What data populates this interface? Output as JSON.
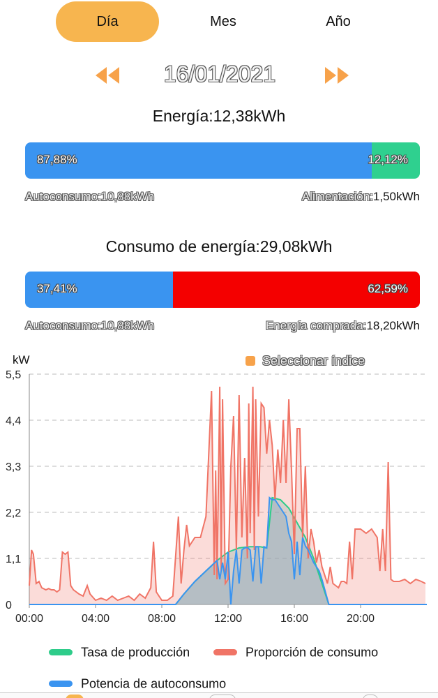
{
  "tabs": [
    {
      "label": "Día",
      "active": true
    },
    {
      "label": "Mes",
      "active": false
    },
    {
      "label": "Año",
      "active": false
    }
  ],
  "date": "16/01/2021",
  "energy": {
    "title": "Energía:12,38kWh",
    "left_pct": "87,88%",
    "right_pct": "12,12%",
    "left_fraction": 0.8788,
    "left_caption": "Autoconsumo:10,88kWh",
    "right_caption_label": "Alimentación:",
    "right_caption_value": "1,50kWh",
    "left_color": "#3a94f0",
    "right_color": "#2fd08f"
  },
  "consumption": {
    "title": "Consumo de energía:29,08kWh",
    "left_pct": "37,41%",
    "right_pct": "62,59%",
    "left_fraction": 0.3741,
    "left_caption": "Autoconsumo:10,88kWh",
    "right_caption_label": "Energía comprada:",
    "right_caption_value": "18,20kWh",
    "left_color": "#3a94f0",
    "right_color": "#f40000"
  },
  "chart": {
    "unit": "kW",
    "index_button": "Seleccionar índice",
    "index_color": "#f7a24a"
  },
  "chart_data": {
    "type": "area",
    "ylim": [
      0,
      5.5
    ],
    "yticks": [
      "0",
      "1,1",
      "2,2",
      "3,3",
      "4,4",
      "5,5"
    ],
    "ytick_values": [
      0,
      1.1,
      2.2,
      3.3,
      4.4,
      5.5
    ],
    "xlim": [
      "00:00",
      "24:00"
    ],
    "xticks": [
      "00:00",
      "04:00",
      "08:00",
      "12:00",
      "16:00",
      "20:00"
    ],
    "xtick_values": [
      "00:00",
      "04:00",
      "08:00",
      "12:00",
      "16:00",
      "20:00"
    ],
    "grid": true,
    "legend_position": "bottom",
    "series": [
      {
        "name": "Tasa de producción",
        "color": "#2ecc8a",
        "x": [
          "08:50",
          "09:20",
          "10:00",
          "10:40",
          "11:20",
          "12:00",
          "12:40",
          "13:20",
          "13:55",
          "14:20",
          "14:40",
          "15:10",
          "15:40",
          "16:10",
          "16:40",
          "17:10",
          "17:40",
          "18:05"
        ],
        "y": [
          0,
          0.25,
          0.55,
          0.8,
          1.05,
          1.25,
          1.35,
          1.38,
          1.38,
          1.35,
          2.55,
          2.5,
          2.3,
          1.95,
          1.6,
          1.1,
          0.5,
          0
        ]
      },
      {
        "name": "Proporción de consumo",
        "color": "#f07466",
        "x": [
          "00:00",
          "00:08",
          "00:15",
          "00:25",
          "00:35",
          "00:45",
          "01:00",
          "01:10",
          "01:20",
          "01:30",
          "01:40",
          "01:50",
          "02:00",
          "02:10",
          "02:20",
          "02:30",
          "02:40",
          "02:50",
          "03:00",
          "03:15",
          "03:30",
          "03:40",
          "04:00",
          "04:20",
          "04:40",
          "05:00",
          "05:20",
          "05:40",
          "06:00",
          "06:20",
          "06:40",
          "07:00",
          "07:20",
          "07:30",
          "07:40",
          "07:50",
          "08:00",
          "08:20",
          "08:40",
          "09:00",
          "09:10",
          "09:20",
          "09:30",
          "09:40",
          "10:00",
          "10:20",
          "10:40",
          "11:00",
          "11:10",
          "11:15",
          "11:20",
          "11:30",
          "11:35",
          "11:40",
          "11:50",
          "12:00",
          "12:10",
          "12:20",
          "12:30",
          "12:40",
          "12:50",
          "13:00",
          "13:10",
          "13:15",
          "13:20",
          "13:30",
          "13:35",
          "13:40",
          "13:50",
          "14:00",
          "14:10",
          "14:20",
          "14:30",
          "14:40",
          "14:50",
          "15:00",
          "15:10",
          "15:20",
          "15:30",
          "15:40",
          "15:50",
          "16:00",
          "16:10",
          "16:20",
          "16:30",
          "16:40",
          "16:50",
          "17:00",
          "17:10",
          "17:20",
          "17:30",
          "17:40",
          "18:00",
          "18:10",
          "18:20",
          "18:30",
          "18:40",
          "18:50",
          "19:00",
          "19:10",
          "19:20",
          "19:30",
          "19:40",
          "19:50",
          "20:00",
          "20:20",
          "20:40",
          "21:00",
          "21:10",
          "21:20",
          "21:30",
          "21:40",
          "21:50",
          "22:00",
          "22:20",
          "22:40",
          "23:00",
          "23:20",
          "23:40",
          "23:55"
        ],
        "y": [
          0.45,
          1.3,
          1.2,
          0.5,
          0.55,
          0.4,
          0.35,
          0.38,
          0.35,
          0.35,
          0.3,
          0.35,
          1.25,
          1.2,
          1.25,
          0.45,
          0.35,
          0.3,
          0.25,
          0.2,
          0.45,
          0.25,
          0.1,
          0.15,
          0.1,
          0.2,
          0.1,
          0.15,
          0.2,
          0.1,
          0.25,
          0.15,
          0.4,
          1.5,
          0.3,
          0.2,
          0.1,
          0.1,
          0.2,
          2.1,
          0.5,
          1.3,
          1.9,
          1.4,
          1.6,
          1.6,
          2.1,
          5.1,
          0.7,
          3.2,
          0.6,
          5.2,
          0.8,
          4.9,
          0.5,
          0.6,
          3.3,
          4.5,
          1.3,
          5.0,
          1.6,
          3.5,
          1.1,
          4.8,
          1.7,
          5.2,
          1.3,
          4.9,
          2.1,
          4.8,
          4.7,
          3.6,
          4.4,
          3.8,
          2.5,
          3.7,
          2.9,
          4.4,
          2.9,
          4.9,
          3.2,
          1.2,
          4.2,
          4.2,
          1.6,
          3.3,
          1.1,
          1.8,
          1.5,
          1.0,
          1.3,
          0.9,
          0.5,
          0.9,
          0.5,
          0.45,
          0.4,
          0.55,
          0.55,
          0.5,
          1.5,
          0.6,
          1.8,
          1.8,
          1.8,
          1.7,
          1.8,
          1.6,
          0.8,
          1.8,
          0.8,
          3.4,
          0.6,
          0.55,
          0.55,
          0.6,
          0.5,
          0.6,
          0.55,
          0.5
        ]
      },
      {
        "name": "Potencia de autoconsumo",
        "color": "#3a94f0",
        "x": [
          "00:00",
          "08:50",
          "09:20",
          "10:00",
          "10:40",
          "11:20",
          "11:30",
          "11:40",
          "11:50",
          "12:00",
          "12:10",
          "12:20",
          "12:30",
          "12:40",
          "12:50",
          "13:00",
          "13:10",
          "13:20",
          "13:30",
          "13:40",
          "13:50",
          "14:00",
          "14:10",
          "14:20",
          "14:30",
          "14:40",
          "14:50",
          "15:00",
          "15:10",
          "15:20",
          "15:30",
          "15:40",
          "15:50",
          "16:00",
          "16:10",
          "16:20",
          "16:30",
          "16:40",
          "16:50",
          "17:00",
          "17:10",
          "17:20",
          "17:30",
          "17:40",
          "18:05",
          "24:00"
        ],
        "y": [
          0,
          0,
          0.25,
          0.55,
          0.8,
          1.05,
          0.6,
          1.0,
          0.6,
          1.25,
          0.0,
          0.8,
          1.3,
          0.5,
          1.3,
          1.35,
          1.36,
          1.3,
          0.55,
          1.38,
          1.38,
          0.5,
          1.38,
          1.35,
          2.55,
          2.5,
          2.5,
          2.4,
          2.3,
          2.2,
          2.1,
          1.7,
          1.5,
          0.6,
          1.5,
          0.7,
          1.6,
          1.4,
          1.3,
          1.15,
          1.0,
          0.9,
          0.8,
          0.6,
          0,
          0
        ]
      }
    ]
  },
  "bottom_nav": {
    "active_color": "#f7b54f"
  }
}
